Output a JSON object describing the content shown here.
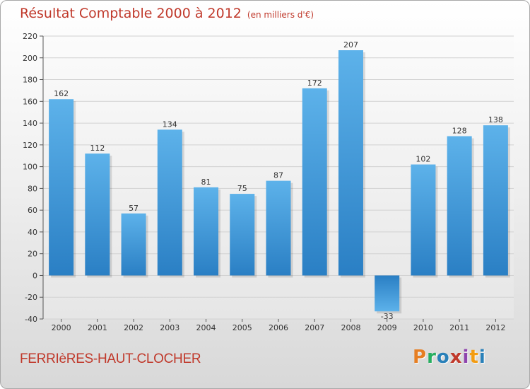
{
  "header": {
    "title": "Résultat Comptable 2000 à 2012",
    "unit": "(en milliers d'€)"
  },
  "footer": {
    "commune": "FERRIèRES-HAUT-CLOCHER",
    "logo": [
      "P",
      "r",
      "o",
      "x",
      "i",
      "t",
      "i"
    ],
    "logo_colors": [
      "#e67e22",
      "#27ae60",
      "#2980b9",
      "#c0392b",
      "#8e44ad",
      "#f39c12",
      "#2980b9"
    ]
  },
  "chart_data": {
    "type": "bar",
    "title": "Résultat Comptable 2000 à 2012",
    "ylabel": "en milliers d'€",
    "xlabel": "",
    "categories": [
      "2000",
      "2001",
      "2002",
      "2003",
      "2004",
      "2005",
      "2006",
      "2007",
      "2008",
      "2009",
      "2010",
      "2011",
      "2012"
    ],
    "values": [
      162,
      112,
      57,
      134,
      81,
      75,
      87,
      172,
      207,
      -33,
      102,
      128,
      138
    ],
    "ylim": [
      -40,
      220
    ],
    "yticks": [
      -40,
      -20,
      0,
      20,
      40,
      60,
      80,
      100,
      120,
      140,
      160,
      180,
      200,
      220
    ],
    "grid": true,
    "bar_color": "#4aa3e0",
    "bar_color_dark": "#2a7fc4"
  }
}
